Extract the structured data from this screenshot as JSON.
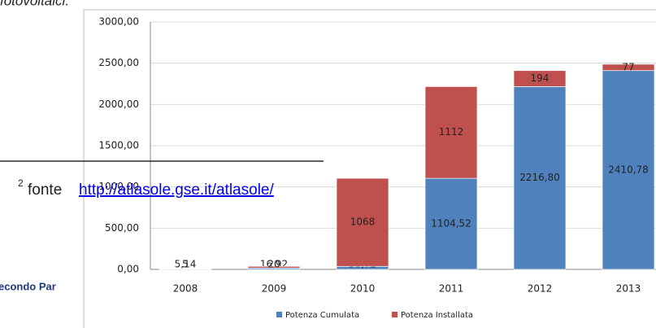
{
  "header": {
    "text": "fotovoltaici."
  },
  "footnote": {
    "number": "2",
    "text": "fonte",
    "link": "http://atlasole.gse.it/atlasole/"
  },
  "footer": {
    "text": "econdo Par"
  },
  "chart_data": {
    "type": "bar",
    "stacked": true,
    "categories": [
      "2008",
      "2009",
      "2010",
      "2011",
      "2012",
      "2013"
    ],
    "series": [
      {
        "name": "Potenza Cumulata",
        "color": "#4f81bd",
        "values": [
          5.14,
          16.92,
          36.72,
          1104.52,
          2216.8,
          2410.78
        ],
        "value_labels": [
          "5,14",
          "16,92",
          "36,72",
          "1104,52",
          "2216,80",
          "2410,78"
        ]
      },
      {
        "name": "Potenza Installata",
        "color": "#c0504d",
        "values": [
          5,
          20,
          1068,
          1112,
          194,
          77
        ]
      }
    ],
    "ylim": [
      0,
      3000
    ],
    "yticks": [
      {
        "value": 0,
        "label": "0,00"
      },
      {
        "value": 500,
        "label": "500,00"
      },
      {
        "value": 1000,
        "label": "1000,00"
      },
      {
        "value": 1500,
        "label": "1500,00"
      },
      {
        "value": 2000,
        "label": "2000,00"
      },
      {
        "value": 2500,
        "label": "2500,00"
      },
      {
        "value": 3000,
        "label": "3000,00"
      }
    ],
    "grid": true,
    "legend": "bottom"
  }
}
